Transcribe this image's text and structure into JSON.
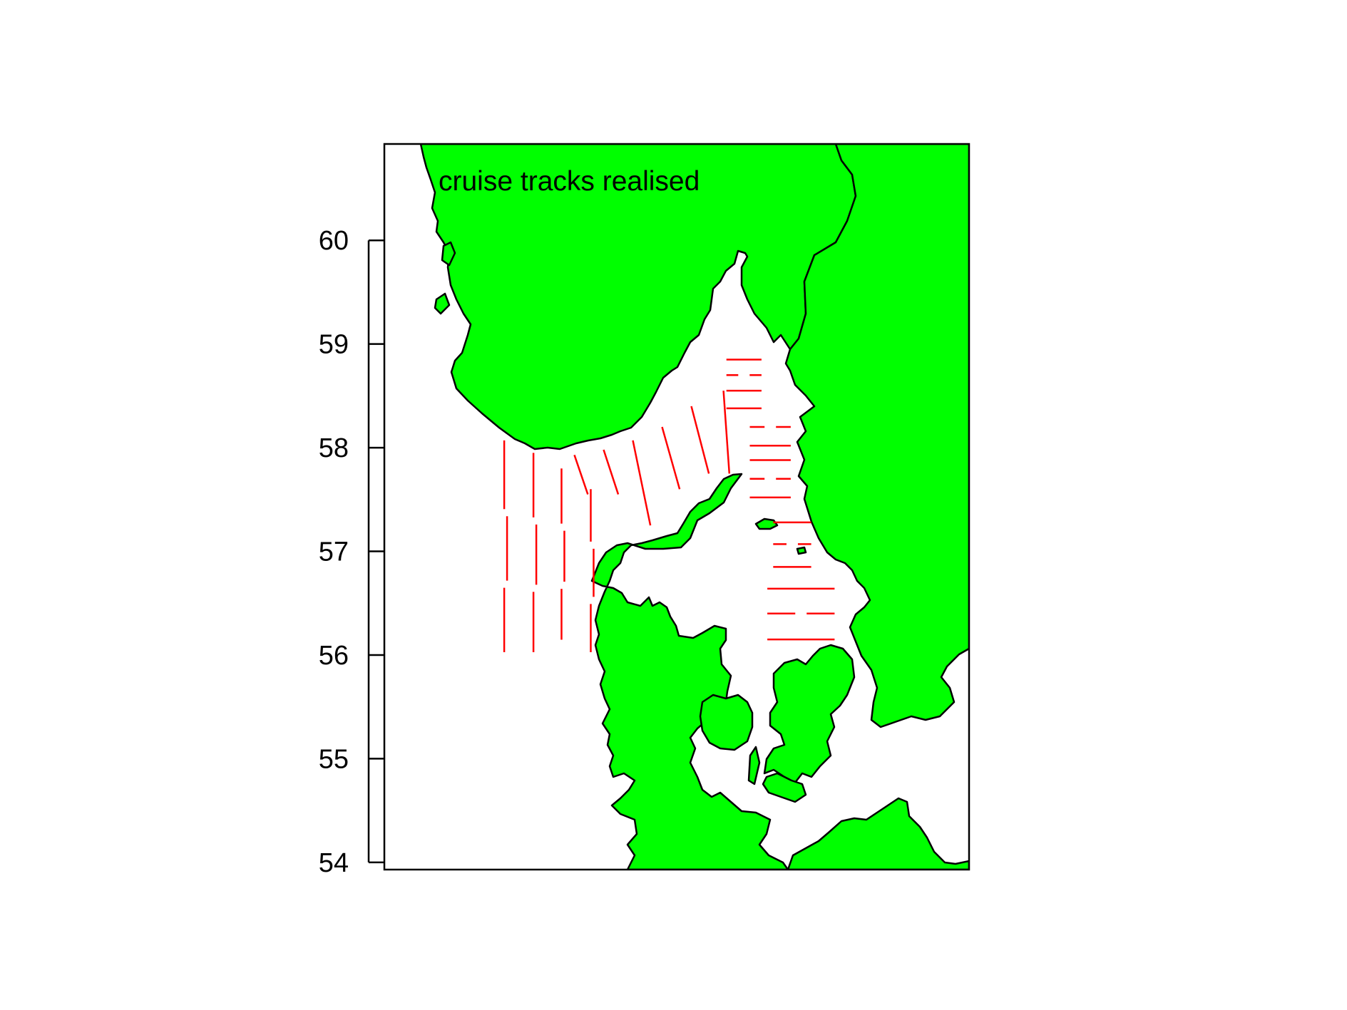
{
  "figure": {
    "title": "cruise tracks realised",
    "land_color": "#00ff00",
    "coast_color": "#000000",
    "track_color": "#ff0000",
    "background_color": "#ffffff"
  },
  "chart_data": {
    "type": "map",
    "title": "cruise tracks realised",
    "ylabel": "",
    "xlabel": "",
    "ylim": [
      53.93,
      60.93
    ],
    "xlim": [
      3.0,
      13.0
    ],
    "y_ticks": [
      {
        "value": 54,
        "label": "54"
      },
      {
        "value": 55,
        "label": "55"
      },
      {
        "value": 56,
        "label": "56"
      },
      {
        "value": 57,
        "label": "57"
      },
      {
        "value": 58,
        "label": "58"
      },
      {
        "value": 59,
        "label": "59"
      },
      {
        "value": 60,
        "label": "60"
      }
    ],
    "x_axis_shown": false,
    "land_regions": [
      "Norway",
      "Sweden",
      "Denmark (Jutland)",
      "Funen",
      "Zealand",
      "Germany",
      "Laeso"
    ],
    "track_series": {
      "name": "",
      "vertical_transects_north_sea": [
        {
          "lon": 5.05,
          "lat_from": 58.07,
          "lat_to": 56.0
        },
        {
          "lon": 5.55,
          "lat_from": 57.95,
          "lat_to": 56.0
        },
        {
          "lon": 6.03,
          "lat_from": 57.8,
          "lat_to": 56.12
        },
        {
          "lon": 6.53,
          "lat_from": 57.6,
          "lat_to": 56.0
        }
      ],
      "diagonal_transects_skagerrak": [
        {
          "lon_from": 6.25,
          "lat_from": 57.93,
          "lon_to": 6.48,
          "lat_to": 57.55
        },
        {
          "lon_from": 6.75,
          "lat_from": 57.98,
          "lon_to": 7.0,
          "lat_to": 57.55
        },
        {
          "lon_from": 7.25,
          "lat_from": 58.07,
          "lon_to": 7.55,
          "lat_to": 57.25
        },
        {
          "lon_from": 7.75,
          "lat_from": 58.2,
          "lon_to": 8.05,
          "lat_to": 57.6
        },
        {
          "lon_from": 8.25,
          "lat_from": 58.4,
          "lon_to": 8.55,
          "lat_to": 57.75
        },
        {
          "lon_from": 8.8,
          "lat_from": 58.55,
          "lon_to": 8.9,
          "lat_to": 57.75
        }
      ],
      "horizontal_transects_kattegat_lat": [
        58.85,
        58.7,
        58.55,
        58.38,
        58.2,
        58.02,
        57.88,
        57.7,
        57.52,
        57.28,
        57.07,
        56.85,
        56.64,
        56.4,
        56.15
      ]
    }
  }
}
